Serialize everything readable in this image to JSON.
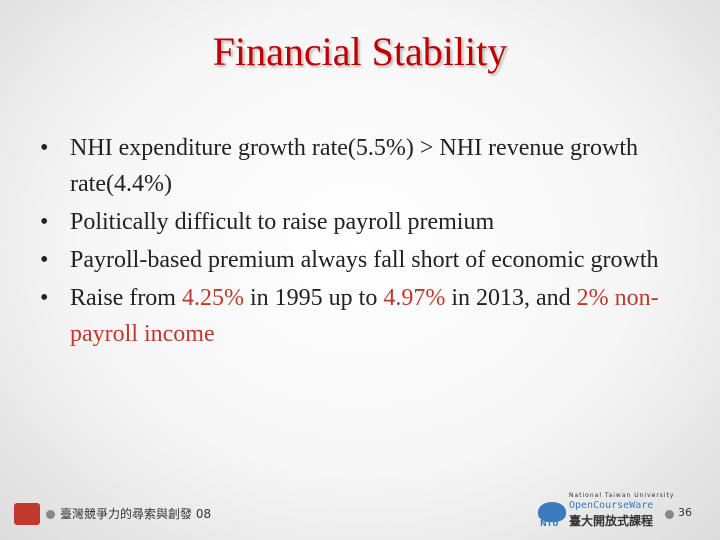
{
  "header": {
    "title": "Financial Stability"
  },
  "bullets": [
    {
      "segments": [
        {
          "text": "NHI expenditure growth rate(5.5%) > NHI revenue growth rate(4.4%)"
        }
      ]
    },
    {
      "segments": [
        {
          "text": "Politically difficult to raise payroll premium"
        }
      ]
    },
    {
      "segments": [
        {
          "text": "Payroll-based premium always fall short of economic growth"
        }
      ]
    },
    {
      "segments": [
        {
          "text": "Raise from "
        },
        {
          "text": "4.25%",
          "color": "#c0392b"
        },
        {
          "text": " in 1995 up to "
        },
        {
          "text": "4.97%",
          "color": "#c0392b"
        },
        {
          "text": " in 2013, and "
        },
        {
          "text": "2% non-payroll income",
          "color": "#c0392b"
        }
      ]
    }
  ],
  "footer": {
    "course": "臺灣競爭力的尋索與創發 08",
    "logo": {
      "university": "National Taiwan University",
      "ocw": "OpenCourseWare",
      "chinese": "臺大開放式課程",
      "badge": "NTU"
    },
    "page": "36"
  }
}
